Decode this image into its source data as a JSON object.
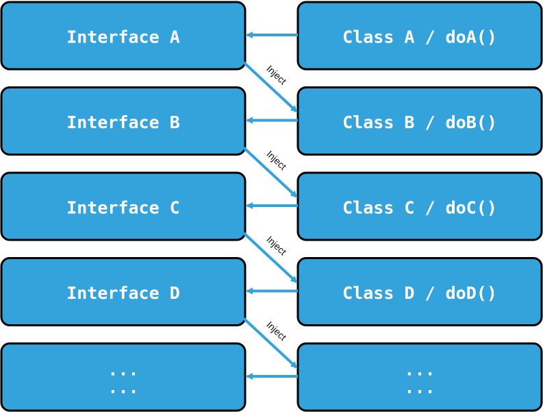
{
  "colors": {
    "box_fill": "#34a3dc",
    "box_border": "#000000",
    "arrow": "#34a3dc",
    "text": "#ffffff",
    "inject_text": "#111111"
  },
  "rows": [
    {
      "interface_label": "Interface A",
      "class_label": "Class A / doA()"
    },
    {
      "interface_label": "Interface B",
      "class_label": "Class B / doB()"
    },
    {
      "interface_label": "Interface C",
      "class_label": "Class C / doC()"
    },
    {
      "interface_label": "Interface D",
      "class_label": "Class D / doD()"
    },
    {
      "interface_label": "...\n...",
      "class_label": "...\n..."
    }
  ],
  "inject_label": "Inject"
}
